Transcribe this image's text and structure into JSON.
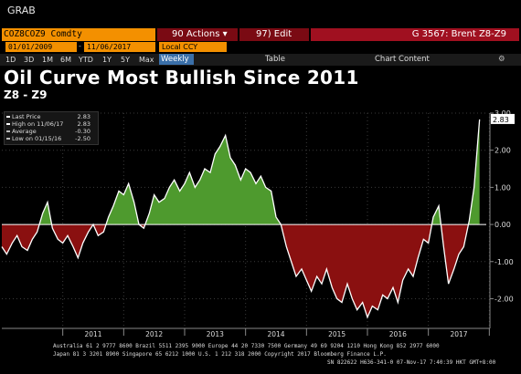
{
  "header": {
    "grab_label": "GRAB",
    "security": "COZ8COZ9 Comdty",
    "actions_label": "90 Actions ▾",
    "edit_label": "97) Edit",
    "graph_title": "G 3567: Brent Z8-Z9"
  },
  "controls": {
    "start_date": "01/01/2009",
    "end_date": "11/06/2017",
    "currency": "Local CCY",
    "periods": [
      "1D",
      "3D",
      "1M",
      "6M",
      "YTD",
      "1Y",
      "5Y",
      "Max"
    ],
    "frequency": "Weekly",
    "table_label": "Table",
    "chart_content_label": "Chart Content"
  },
  "chart_data": {
    "type": "area",
    "title": "Oil Curve Most Bullish Since 2011",
    "subtitle": "Z8 - Z9",
    "ylim": [
      -2.8,
      3.0
    ],
    "yticks": [
      "3.00",
      "2.00",
      "1.00",
      "0.00",
      "-1.00",
      "-2.00"
    ],
    "xticks": [
      "2011",
      "2012",
      "2013",
      "2014",
      "2015",
      "2016",
      "2017"
    ],
    "last_price_label": "2.83",
    "legend": [
      {
        "label": "Last Price",
        "value": "2.83"
      },
      {
        "label": "High on 11/06/17",
        "value": "2.83"
      },
      {
        "label": "Average",
        "value": "-0.30"
      },
      {
        "label": "Low on 01/15/16",
        "value": "-2.50"
      }
    ],
    "series": [
      {
        "x": [
          2010.0,
          2010.08,
          2010.17,
          2010.25,
          2010.33,
          2010.42,
          2010.5,
          2010.58,
          2010.67,
          2010.75,
          2010.83,
          2010.92,
          2011.0,
          2011.08,
          2011.17,
          2011.25,
          2011.33,
          2011.42,
          2011.5,
          2011.58,
          2011.67,
          2011.75,
          2011.83,
          2011.92,
          2012.0,
          2012.08,
          2012.17,
          2012.25,
          2012.33,
          2012.42,
          2012.5,
          2012.58,
          2012.67,
          2012.75,
          2012.83,
          2012.92,
          2013.0,
          2013.08,
          2013.17,
          2013.25,
          2013.33,
          2013.42,
          2013.5,
          2013.58,
          2013.67,
          2013.75,
          2013.83,
          2013.92,
          2014.0,
          2014.08,
          2014.17,
          2014.25,
          2014.33,
          2014.42,
          2014.5,
          2014.58,
          2014.67,
          2014.75,
          2014.83,
          2014.92,
          2015.0,
          2015.08,
          2015.17,
          2015.25,
          2015.33,
          2015.42,
          2015.5,
          2015.58,
          2015.67,
          2015.75,
          2015.83,
          2015.92,
          2016.0,
          2016.08,
          2016.17,
          2016.25,
          2016.33,
          2016.42,
          2016.5,
          2016.58,
          2016.67,
          2016.75,
          2016.83,
          2016.92,
          2017.0,
          2017.08,
          2017.17,
          2017.25,
          2017.33,
          2017.42,
          2017.5,
          2017.58,
          2017.67,
          2017.75,
          2017.84
        ],
        "values": [
          -0.6,
          -0.8,
          -0.5,
          -0.3,
          -0.6,
          -0.7,
          -0.4,
          -0.2,
          0.3,
          0.6,
          -0.1,
          -0.4,
          -0.5,
          -0.3,
          -0.6,
          -0.9,
          -0.5,
          -0.2,
          0.0,
          -0.3,
          -0.2,
          0.2,
          0.5,
          0.9,
          0.8,
          1.1,
          0.6,
          0.0,
          -0.1,
          0.3,
          0.8,
          0.6,
          0.7,
          1.0,
          1.2,
          0.9,
          1.1,
          1.4,
          1.0,
          1.2,
          1.5,
          1.4,
          1.9,
          2.1,
          2.4,
          1.8,
          1.6,
          1.2,
          1.5,
          1.4,
          1.1,
          1.3,
          1.0,
          0.9,
          0.2,
          0.0,
          -0.6,
          -1.0,
          -1.4,
          -1.2,
          -1.5,
          -1.8,
          -1.4,
          -1.6,
          -1.2,
          -1.7,
          -2.0,
          -2.1,
          -1.6,
          -2.0,
          -2.3,
          -2.1,
          -2.5,
          -2.2,
          -2.3,
          -1.9,
          -2.0,
          -1.7,
          -2.1,
          -1.5,
          -1.2,
          -1.4,
          -0.9,
          -0.4,
          -0.5,
          0.2,
          0.5,
          -0.6,
          -1.6,
          -1.2,
          -0.8,
          -0.6,
          0.1,
          1.0,
          2.83
        ]
      }
    ]
  },
  "footer": {
    "line1": "Australia 61 2 9777 8600  Brazil 5511 2395 9000  Europe 44 20 7330 7500  Germany 49 69 9204 1210  Hong Kong 852 2977 6000",
    "line2": "Japan 81 3 3201 8900        Singapore 65 6212 1000        U.S. 1 212 318 2000        Copyright 2017 Bloomberg Finance L.P.",
    "line3": "SN 822622 H636-341-0 07-Nov-17  7:40:39 HKT  GMT+8:00"
  },
  "colors": {
    "positive": "#4e9a2e",
    "negative": "#8a1010",
    "line": "#ffffff",
    "accent": "#f39000"
  }
}
